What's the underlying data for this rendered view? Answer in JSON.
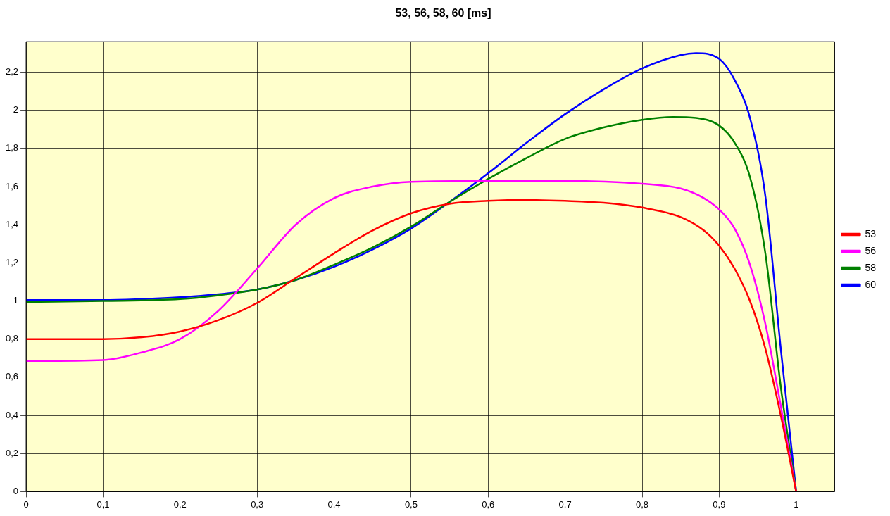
{
  "chart_data": {
    "type": "line",
    "title": "53, 56, 58, 60 [ms]",
    "legend": "right",
    "grid": true,
    "marker": "none",
    "line_style": "solid",
    "xlim": [
      0,
      1.05
    ],
    "ylim": [
      0,
      2.36
    ],
    "xticks": [
      0,
      {
        "value": 0.1,
        "label": "0,1"
      },
      {
        "value": 0.2,
        "label": "0,2"
      },
      {
        "value": 0.3,
        "label": "0,3"
      },
      {
        "value": 0.4,
        "label": "0,4"
      },
      {
        "value": 0.5,
        "label": "0,5"
      },
      {
        "value": 0.6,
        "label": "0,6"
      },
      {
        "value": 0.7,
        "label": "0,7"
      },
      {
        "value": 0.8,
        "label": "0,8"
      },
      {
        "value": 0.9,
        "label": "0,9"
      },
      1
    ],
    "yticks": [
      0,
      {
        "value": 0.2,
        "label": "0,2"
      },
      {
        "value": 0.4,
        "label": "0,4"
      },
      {
        "value": 0.6,
        "label": "0,6"
      },
      {
        "value": 0.8,
        "label": "0,8"
      },
      1,
      {
        "value": 1.2,
        "label": "1,2"
      },
      {
        "value": 1.4,
        "label": "1,4"
      },
      {
        "value": 1.6,
        "label": "1,6"
      },
      {
        "value": 1.8,
        "label": "1,8"
      },
      2,
      {
        "value": 2.2,
        "label": "2,2"
      }
    ],
    "series": [
      {
        "name": "53",
        "color": "#ff0000",
        "x": [
          0,
          0.1,
          0.15,
          0.2,
          0.25,
          0.3,
          0.35,
          0.4,
          0.45,
          0.5,
          0.55,
          0.6,
          0.65,
          0.7,
          0.75,
          0.8,
          0.85,
          0.88,
          0.9,
          0.92,
          0.94,
          0.96,
          0.98,
          1
        ],
        "values": [
          0.8,
          0.8,
          0.81,
          0.84,
          0.9,
          0.99,
          1.12,
          1.25,
          1.37,
          1.46,
          1.51,
          1.525,
          1.53,
          1.525,
          1.515,
          1.49,
          1.44,
          1.37,
          1.29,
          1.17,
          1.0,
          0.75,
          0.4,
          0
        ]
      },
      {
        "name": "56",
        "color": "#ff00ff",
        "x": [
          0,
          0.1,
          0.15,
          0.2,
          0.25,
          0.3,
          0.35,
          0.4,
          0.45,
          0.5,
          0.6,
          0.7,
          0.8,
          0.85,
          0.88,
          0.9,
          0.92,
          0.94,
          0.96,
          0.98,
          1
        ],
        "values": [
          0.685,
          0.69,
          0.73,
          0.8,
          0.95,
          1.17,
          1.4,
          1.54,
          1.6,
          1.625,
          1.63,
          1.63,
          1.615,
          1.59,
          1.54,
          1.48,
          1.38,
          1.19,
          0.88,
          0.45,
          0
        ]
      },
      {
        "name": "58",
        "color": "#008000",
        "x": [
          0,
          0.1,
          0.2,
          0.25,
          0.3,
          0.35,
          0.4,
          0.45,
          0.5,
          0.55,
          0.6,
          0.65,
          0.7,
          0.75,
          0.8,
          0.84,
          0.87,
          0.9,
          0.92,
          0.94,
          0.96,
          0.98,
          1
        ],
        "values": [
          0.995,
          1.0,
          1.01,
          1.03,
          1.06,
          1.11,
          1.19,
          1.28,
          1.39,
          1.52,
          1.64,
          1.75,
          1.85,
          1.91,
          1.95,
          1.965,
          1.96,
          1.92,
          1.83,
          1.65,
          1.25,
          0.55,
          0
        ]
      },
      {
        "name": "60",
        "color": "#0000ff",
        "x": [
          0,
          0.1,
          0.2,
          0.25,
          0.3,
          0.35,
          0.4,
          0.45,
          0.5,
          0.55,
          0.6,
          0.65,
          0.7,
          0.75,
          0.8,
          0.85,
          0.87,
          0.9,
          0.92,
          0.94,
          0.96,
          0.98,
          1
        ],
        "values": [
          1.005,
          1.005,
          1.02,
          1.035,
          1.06,
          1.11,
          1.18,
          1.27,
          1.38,
          1.52,
          1.67,
          1.83,
          1.98,
          2.11,
          2.22,
          2.29,
          2.3,
          2.27,
          2.16,
          1.96,
          1.55,
          0.75,
          0
        ]
      }
    ]
  }
}
